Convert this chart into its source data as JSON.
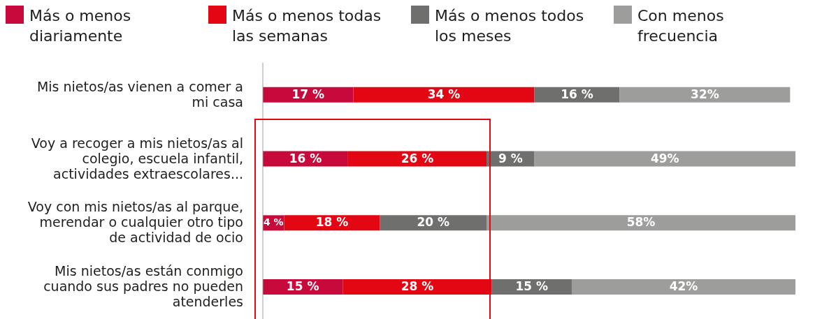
{
  "chart_data": {
    "type": "bar",
    "orientation": "horizontal",
    "stacked": true,
    "legend": "top",
    "categories": [
      "Mis nietos/as vienen a comer a mi casa",
      "Voy a recoger a mis nietos/as al colegio, escuela infantil, actividades extraescolares...",
      "Voy con mis nietos/as al parque, merendar o cualquier otro tipo de actividad de ocio",
      "Mis nietos/as están conmigo cuando sus padres no pueden atenderles"
    ],
    "series": [
      {
        "name": "Más o menos diariamente",
        "color": "#c8093b",
        "values": [
          17,
          16,
          4,
          15
        ],
        "value_labels": [
          "17 %",
          "16 %",
          "4 %",
          "15 %"
        ]
      },
      {
        "name": "Más o menos todas las semanas",
        "color": "#e30613",
        "values": [
          34,
          26,
          18,
          28
        ],
        "value_labels": [
          "34 %",
          "26 %",
          "18 %",
          "28 %"
        ]
      },
      {
        "name": "Más o menos todos los meses",
        "color": "#6f6f6e",
        "values": [
          16,
          9,
          20,
          15
        ],
        "value_labels": [
          "16 %",
          "9 %",
          "20 %",
          "15 %"
        ]
      },
      {
        "name": "Con menos frecuencia",
        "color": "#9d9d9c",
        "values": [
          32,
          49,
          58,
          42
        ],
        "value_labels": [
          "32%",
          "49%",
          "58%",
          "42%"
        ]
      }
    ]
  }
}
